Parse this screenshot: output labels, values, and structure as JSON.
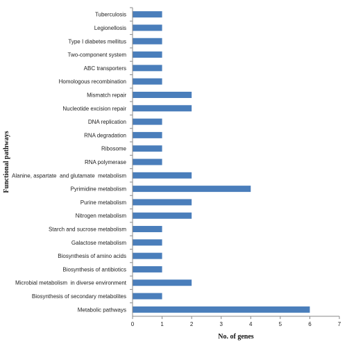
{
  "chart_data": {
    "type": "bar",
    "orientation": "horizontal",
    "categories": [
      "Tuberculosis",
      "Legionellosis",
      "Type I diabetes mellitus",
      "Two-component system",
      "ABC transporters",
      "Homologous recombination",
      "Mismatch repair",
      "Nucleotide excision repair",
      "DNA replication",
      "RNA degradation",
      "Ribosome",
      "RNA polymerase",
      "Alanine, aspartate  and glutamate  metabolism",
      "Pyrimidine metabolism",
      "Purine metabolism",
      "Nitrogen metabolism",
      "Starch and sucrose metabolism",
      "Galactose metabolism",
      "Biosynthesis of amino acids",
      "Biosynthesis of antibiotics",
      "Microbial metabolism  in diverse environment",
      "Biosynthesis of secondary metabolites",
      "Metabolic pathways"
    ],
    "values": [
      1,
      1,
      1,
      1,
      1,
      1,
      2,
      2,
      1,
      1,
      1,
      1,
      2,
      4,
      2,
      2,
      1,
      1,
      1,
      1,
      2,
      1,
      6
    ],
    "xlabel": "No. of genes",
    "ylabel": "Functional pathways",
    "xlim": [
      0,
      7
    ],
    "xticks": [
      "0",
      "1",
      "2",
      "3",
      "4",
      "5",
      "6",
      "7"
    ],
    "grid": false,
    "legend": "none",
    "bar_color": "#4a7ebb"
  }
}
